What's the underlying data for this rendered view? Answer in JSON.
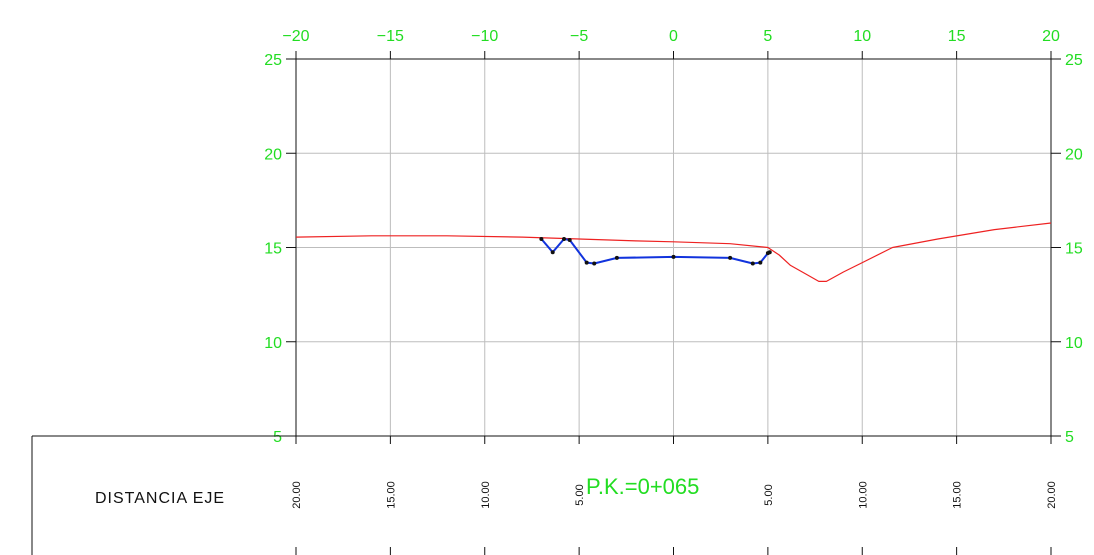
{
  "chart_data": {
    "type": "line",
    "title": "",
    "xlabel": "",
    "ylabel": "",
    "xlim": [
      -20,
      20
    ],
    "ylim": [
      5,
      25
    ],
    "grid": true,
    "x_ticks": [
      -20,
      -15,
      -10,
      -5,
      0,
      5,
      10,
      15,
      20
    ],
    "y_ticks": [
      5,
      10,
      15,
      20,
      25
    ],
    "series": [
      {
        "color": "#ee2222",
        "points": [
          [
            -20,
            15.55
          ],
          [
            -16,
            15.62
          ],
          [
            -12,
            15.62
          ],
          [
            -8,
            15.55
          ],
          [
            -5,
            15.45
          ],
          [
            -2,
            15.35
          ],
          [
            0,
            15.3
          ],
          [
            3,
            15.2
          ],
          [
            5,
            15.0
          ],
          [
            5.6,
            14.6
          ],
          [
            6.2,
            14.05
          ],
          [
            7,
            13.6
          ],
          [
            7.7,
            13.2
          ],
          [
            8.1,
            13.2
          ],
          [
            9,
            13.7
          ],
          [
            10,
            14.2
          ],
          [
            11.6,
            15.0
          ],
          [
            14,
            15.45
          ],
          [
            17,
            15.95
          ],
          [
            20,
            16.3
          ]
        ]
      },
      {
        "color": "#1133dd",
        "markers": true,
        "points": [
          [
            -7.0,
            15.45
          ],
          [
            -6.4,
            14.75
          ],
          [
            -5.8,
            15.45
          ],
          [
            -5.5,
            15.4
          ],
          [
            -4.6,
            14.2
          ],
          [
            -4.2,
            14.15
          ],
          [
            -3.0,
            14.45
          ],
          [
            0,
            14.5
          ],
          [
            3.0,
            14.45
          ],
          [
            4.2,
            14.15
          ],
          [
            4.6,
            14.2
          ],
          [
            5.0,
            14.7
          ],
          [
            5.1,
            14.75
          ]
        ]
      }
    ],
    "footer": {
      "row_label": "DISTANCIA EJE",
      "station_label": "P.K.=0+065",
      "distance_labels": [
        "20.00",
        "15.00",
        "10.00",
        "5.00",
        "",
        "5.00",
        "10.00",
        "15.00",
        "20.00"
      ]
    }
  }
}
